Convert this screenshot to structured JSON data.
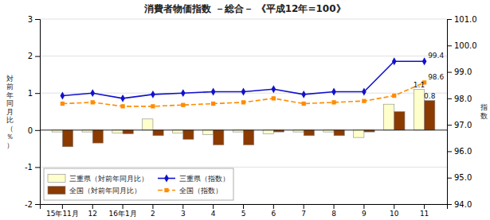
{
  "chart_data": {
    "type": "bar",
    "title": "消費者物価指数 －総合－ 《平成12年=100》",
    "categories": [
      "15年11月",
      "12",
      "16年1月",
      "2",
      "3",
      "4",
      "5",
      "6",
      "7",
      "8",
      "9",
      "10",
      "11"
    ],
    "series": [
      {
        "name": "三重県（対前年同月比）",
        "type": "bar",
        "color": "#ffffcc",
        "values": [
          -0.05,
          -0.05,
          -0.08,
          0.3,
          -0.08,
          -0.12,
          -0.05,
          -0.1,
          -0.05,
          -0.05,
          -0.2,
          0.7,
          1.1
        ],
        "value_labels": [
          null,
          null,
          null,
          null,
          null,
          null,
          null,
          null,
          null,
          null,
          null,
          null,
          "1.1"
        ]
      },
      {
        "name": "全国（対前年同月比）",
        "type": "bar",
        "color": "#8B3A00",
        "values": [
          -0.45,
          -0.35,
          -0.1,
          -0.15,
          -0.25,
          -0.4,
          -0.4,
          -0.05,
          -0.15,
          -0.15,
          -0.05,
          0.5,
          0.8
        ],
        "value_labels": [
          null,
          null,
          null,
          null,
          null,
          null,
          null,
          null,
          null,
          null,
          null,
          null,
          "0.8"
        ]
      },
      {
        "name": "三重県（指数）",
        "type": "line",
        "axis": "y2",
        "color": "#1111cc",
        "marker": "diamond",
        "line_style": "solid",
        "values": [
          98.1,
          98.2,
          98.0,
          98.15,
          98.2,
          98.25,
          98.25,
          98.35,
          98.15,
          98.25,
          98.25,
          99.4,
          99.4
        ],
        "value_labels": [
          null,
          null,
          null,
          null,
          null,
          null,
          null,
          null,
          null,
          null,
          null,
          null,
          "99.4"
        ]
      },
      {
        "name": "全国（指数）",
        "type": "line",
        "axis": "y2",
        "color": "#FF8C00",
        "marker": "square",
        "line_style": "dashed",
        "values": [
          97.8,
          97.85,
          97.7,
          97.7,
          97.75,
          97.8,
          97.85,
          98.0,
          97.8,
          97.85,
          97.9,
          98.1,
          98.6
        ],
        "value_labels": [
          null,
          null,
          null,
          null,
          null,
          null,
          null,
          null,
          null,
          null,
          null,
          null,
          "98.6"
        ]
      }
    ],
    "ylabel": "対\n前\n年\n同\n月\n比\n（\n％\n）",
    "y2label": "指\n数",
    "ylim": [
      -2.0,
      3.0
    ],
    "yticks": [
      -2,
      -1,
      0,
      1,
      2,
      3
    ],
    "y2lim": [
      94.0,
      101.0
    ],
    "y2ticks": [
      {
        "value": 94,
        "label": "94.0"
      },
      {
        "value": 95,
        "label": "95.0"
      },
      {
        "value": 96,
        "label": "96.0"
      },
      {
        "value": 97,
        "label": "97.0"
      },
      {
        "value": 98,
        "label": "98.0"
      },
      {
        "value": 99,
        "label": "99.0"
      },
      {
        "value": 100,
        "label": "100.0"
      },
      {
        "value": 101,
        "label": "101.0"
      }
    ],
    "grid": true,
    "legend": "lower left"
  }
}
